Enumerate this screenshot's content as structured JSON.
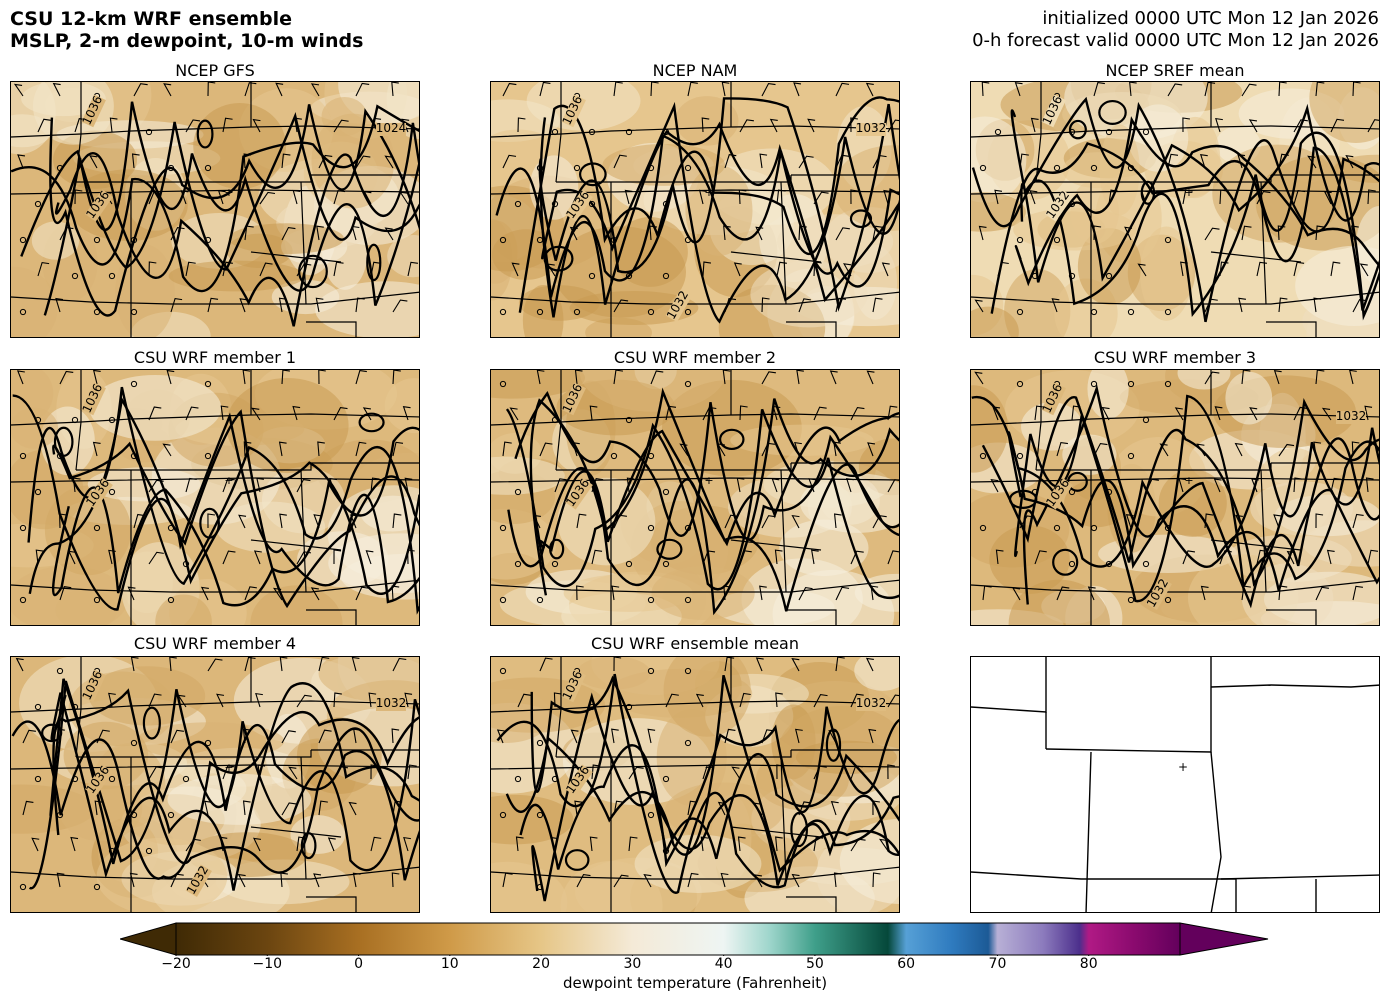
{
  "header": {
    "title_line1": "CSU 12-km WRF ensemble",
    "title_line2": "MSLP, 2-m dewpoint, 10-m winds",
    "init_line": "initialized 0000 UTC Mon 12 Jan 2026",
    "valid_line": "0-h forecast valid 0000 UTC Mon 12 Jan 2026"
  },
  "panels": [
    {
      "title": "NCEP GFS",
      "isobar_labels": [
        "1036",
        "1036",
        "1024"
      ],
      "tone": "#dcb77a"
    },
    {
      "title": "NCEP NAM",
      "isobar_labels": [
        "1036",
        "1036",
        "1032",
        "1032"
      ],
      "tone": "#e6c68e"
    },
    {
      "title": "NCEP SREF mean",
      "isobar_labels": [
        "1036",
        "1032"
      ],
      "tone": "#efdcb4"
    },
    {
      "title": "CSU WRF member 1",
      "isobar_labels": [
        "1036",
        "1036"
      ],
      "tone": "#ddb97c"
    },
    {
      "title": "CSU WRF member 2",
      "isobar_labels": [
        "1036",
        "1036"
      ],
      "tone": "#deba7e"
    },
    {
      "title": "CSU WRF member 3",
      "isobar_labels": [
        "1036",
        "1036",
        "1032",
        "1032"
      ],
      "tone": "#ddb97c"
    },
    {
      "title": "CSU WRF member 4",
      "isobar_labels": [
        "1036",
        "1036",
        "1032",
        "1032"
      ],
      "tone": "#dcb77a"
    },
    {
      "title": "CSU WRF ensemble mean",
      "isobar_labels": [
        "1036",
        "1036",
        "1032"
      ],
      "tone": "#dfbc80"
    },
    {
      "title": "",
      "isobar_labels": [],
      "tone": "#ffffff"
    }
  ],
  "colorbar": {
    "label": "dewpoint temperature (Fahrenheit)",
    "ticks": [
      "−20",
      "−10",
      "0",
      "10",
      "20",
      "30",
      "40",
      "50",
      "60",
      "70",
      "80"
    ],
    "tick_values": [
      -20,
      -10,
      0,
      10,
      20,
      30,
      40,
      50,
      60,
      70,
      80
    ],
    "range": [
      -20,
      90
    ],
    "extend": "both"
  }
}
